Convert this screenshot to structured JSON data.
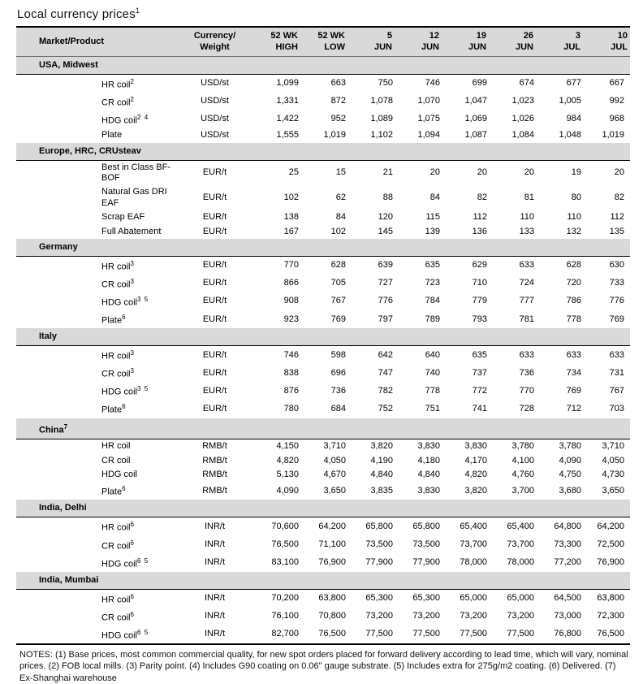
{
  "page": {
    "title": "Local currency prices",
    "title_sup": "1"
  },
  "colors": {
    "band_gray": "#d9d9d9",
    "rule_black": "#000000"
  },
  "table": {
    "columns": [
      {
        "l1": "Market/Product",
        "l2": ""
      },
      {
        "l1": "Currency/",
        "l2": "Weight"
      },
      {
        "l1": "52 WK",
        "l2": "HIGH"
      },
      {
        "l1": "52 WK",
        "l2": "LOW"
      },
      {
        "l1": "5",
        "l2": "JUN"
      },
      {
        "l1": "12",
        "l2": "JUN"
      },
      {
        "l1": "19",
        "l2": "JUN"
      },
      {
        "l1": "26",
        "l2": "JUN"
      },
      {
        "l1": "3",
        "l2": "JUL"
      },
      {
        "l1": "10",
        "l2": "JUL"
      }
    ],
    "sections": [
      {
        "label": "USA, Midwest",
        "sup": "",
        "rows": [
          {
            "product": "HR coil",
            "sup": "2",
            "unit": "USD/st",
            "values": [
              "1,099",
              "663",
              "750",
              "746",
              "699",
              "674",
              "677",
              "667"
            ]
          },
          {
            "product": "CR coil",
            "sup": "2",
            "unit": "USD/st",
            "values": [
              "1,331",
              "872",
              "1,078",
              "1,070",
              "1,047",
              "1,023",
              "1,005",
              "992"
            ]
          },
          {
            "product": "HDG coil",
            "sup": "2 4",
            "unit": "USD/st",
            "values": [
              "1,422",
              "952",
              "1,089",
              "1,075",
              "1,069",
              "1,026",
              "984",
              "968"
            ]
          },
          {
            "product": "Plate",
            "sup": "",
            "unit": "USD/st",
            "values": [
              "1,555",
              "1,019",
              "1,102",
              "1,094",
              "1,087",
              "1,084",
              "1,048",
              "1,019"
            ]
          }
        ]
      },
      {
        "label": "Europe, HRC, CRUsteav",
        "sup": "",
        "rows": [
          {
            "product": "Best in Class BF-BOF",
            "sup": "",
            "unit": "EUR/t",
            "values": [
              "25",
              "15",
              "21",
              "20",
              "20",
              "20",
              "19",
              "20"
            ]
          },
          {
            "product": "Natural Gas DRI EAF",
            "sup": "",
            "unit": "EUR/t",
            "values": [
              "102",
              "62",
              "88",
              "84",
              "82",
              "81",
              "80",
              "82"
            ]
          },
          {
            "product": "Scrap EAF",
            "sup": "",
            "unit": "EUR/t",
            "values": [
              "138",
              "84",
              "120",
              "115",
              "112",
              "110",
              "110",
              "112"
            ]
          },
          {
            "product": "Full Abatement",
            "sup": "",
            "unit": "EUR/t",
            "values": [
              "167",
              "102",
              "145",
              "139",
              "136",
              "133",
              "132",
              "135"
            ]
          }
        ]
      },
      {
        "label": "Germany",
        "sup": "",
        "rows": [
          {
            "product": "HR coil",
            "sup": "3",
            "unit": "EUR/t",
            "values": [
              "770",
              "628",
              "639",
              "635",
              "629",
              "633",
              "628",
              "630"
            ]
          },
          {
            "product": "CR coil",
            "sup": "3",
            "unit": "EUR/t",
            "values": [
              "866",
              "705",
              "727",
              "723",
              "710",
              "724",
              "720",
              "733"
            ]
          },
          {
            "product": "HDG coil",
            "sup": "3 5",
            "unit": "EUR/t",
            "values": [
              "908",
              "767",
              "776",
              "784",
              "779",
              "777",
              "786",
              "776"
            ]
          },
          {
            "product": "Plate",
            "sup": "6",
            "unit": "EUR/t",
            "values": [
              "923",
              "769",
              "797",
              "789",
              "793",
              "781",
              "778",
              "769"
            ]
          }
        ]
      },
      {
        "label": "Italy",
        "sup": "",
        "rows": [
          {
            "product": "HR coil",
            "sup": "3",
            "unit": "EUR/t",
            "values": [
              "746",
              "598",
              "642",
              "640",
              "635",
              "633",
              "633",
              "633"
            ]
          },
          {
            "product": "CR coil",
            "sup": "3",
            "unit": "EUR/t",
            "values": [
              "838",
              "696",
              "747",
              "740",
              "737",
              "736",
              "734",
              "731"
            ]
          },
          {
            "product": "HDG coil",
            "sup": "3 5",
            "unit": "EUR/t",
            "values": [
              "876",
              "736",
              "782",
              "778",
              "772",
              "770",
              "769",
              "767"
            ]
          },
          {
            "product": "Plate",
            "sup": "6",
            "unit": "EUR/t",
            "values": [
              "780",
              "684",
              "752",
              "751",
              "741",
              "728",
              "712",
              "703"
            ]
          }
        ]
      },
      {
        "label": "China",
        "sup": "7",
        "rows": [
          {
            "product": "HR coil",
            "sup": "",
            "unit": "RMB/t",
            "values": [
              "4,150",
              "3,710",
              "3,820",
              "3,830",
              "3,830",
              "3,780",
              "3,780",
              "3,710"
            ]
          },
          {
            "product": "CR coil",
            "sup": "",
            "unit": "RMB/t",
            "values": [
              "4,820",
              "4,050",
              "4,190",
              "4,180",
              "4,170",
              "4,100",
              "4,090",
              "4,050"
            ]
          },
          {
            "product": "HDG coil",
            "sup": "",
            "unit": "RMB/t",
            "values": [
              "5,130",
              "4,670",
              "4,840",
              "4,840",
              "4,820",
              "4,760",
              "4,750",
              "4,730"
            ]
          },
          {
            "product": "Plate",
            "sup": "6",
            "unit": "RMB/t",
            "values": [
              "4,090",
              "3,650",
              "3,835",
              "3,830",
              "3,820",
              "3,700",
              "3,680",
              "3,650"
            ]
          }
        ]
      },
      {
        "label": "India, Delhi",
        "sup": "",
        "rows": [
          {
            "product": "HR coil",
            "sup": "6",
            "unit": "INR/t",
            "values": [
              "70,600",
              "64,200",
              "65,800",
              "65,800",
              "65,400",
              "65,400",
              "64,800",
              "64,200"
            ]
          },
          {
            "product": "CR coil",
            "sup": "6",
            "unit": "INR/t",
            "values": [
              "76,500",
              "71,100",
              "73,500",
              "73,500",
              "73,700",
              "73,700",
              "73,300",
              "72,500"
            ]
          },
          {
            "product": "HDG coil",
            "sup": "6 5",
            "unit": "INR/t",
            "values": [
              "83,100",
              "76,900",
              "77,900",
              "77,900",
              "78,000",
              "78,000",
              "77,200",
              "76,900"
            ]
          }
        ]
      },
      {
        "label": "India, Mumbai",
        "sup": "",
        "rows": [
          {
            "product": "HR coil",
            "sup": "6",
            "unit": "INR/t",
            "values": [
              "70,200",
              "63,800",
              "65,300",
              "65,300",
              "65,000",
              "65,000",
              "64,500",
              "63,800"
            ]
          },
          {
            "product": "CR coil",
            "sup": "6",
            "unit": "INR/t",
            "values": [
              "76,100",
              "70,800",
              "73,200",
              "73,200",
              "73,200",
              "73,200",
              "73,000",
              "72,300"
            ]
          },
          {
            "product": "HDG coil",
            "sup": "6 5",
            "unit": "INR/t",
            "values": [
              "82,700",
              "76,500",
              "77,500",
              "77,500",
              "77,500",
              "77,500",
              "76,800",
              "76,500"
            ]
          }
        ]
      }
    ]
  },
  "notes": {
    "text": "NOTES: (1) Base prices, most common commercial quality, for new spot orders placed for forward delivery according to lead time, which will vary, nominal prices. (2) FOB local mills. (3) Parity point. (4) Includes G90 coating on 0.06\" gauge substrate. (5) Includes extra for 275g/m2 coating. (6) Delivered.  (7) Ex-Shanghai warehouse"
  }
}
